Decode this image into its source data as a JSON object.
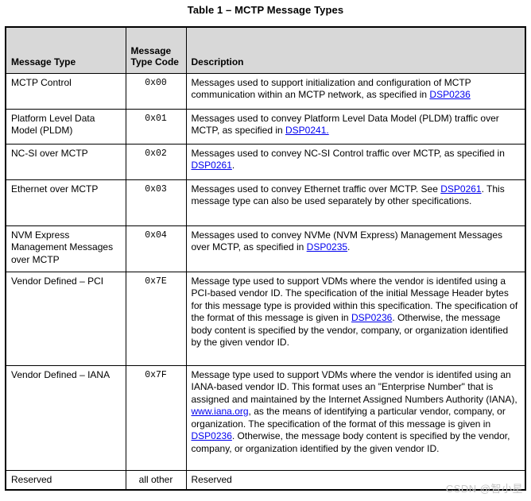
{
  "title": "Table 1 – MCTP Message Types",
  "watermark": "CSDN @智小星",
  "colors": {
    "link": "#0000ee",
    "header_bg": "#d8d8d8",
    "border": "#000000",
    "watermark": "#c8c8c8",
    "background": "#ffffff"
  },
  "table": {
    "headers": [
      "Message Type",
      "Message Type Code",
      "Description"
    ],
    "rows": [
      {
        "type": "MCTP Control",
        "code": "0x00",
        "description": [
          {
            "t": "Messages used to support initialization and configuration of MCTP communication within an MCTP network, as specified in "
          },
          {
            "t": "DSP0236",
            "link": true
          }
        ]
      },
      {
        "type": "Platform Level Data Model (PLDM)",
        "code": "0x01",
        "description": [
          {
            "t": "Messages used to convey Platform Level Data Model (PLDM) traffic over MCTP, as specified in "
          },
          {
            "t": "DSP0241.",
            "link": true
          }
        ]
      },
      {
        "type": "NC-SI over MCTP",
        "code": "0x02",
        "description": [
          {
            "t": "Messages used to convey NC-SI Control traffic over MCTP, as specified in "
          },
          {
            "t": "DSP0261",
            "link": true
          },
          {
            "t": "."
          }
        ]
      },
      {
        "type": "Ethernet over MCTP",
        "code": "0x03",
        "description": [
          {
            "t": "Messages used to convey Ethernet traffic over MCTP. See "
          },
          {
            "t": "DSP0261",
            "link": true
          },
          {
            "t": ". This message type can also be used separately by other specifications."
          }
        ]
      },
      {
        "type": "NVM Express Management Messages over MCTP",
        "code": "0x04",
        "description": [
          {
            "t": "Messages used to convey NVMe (NVM Express) Management Messages over MCTP, as specified in "
          },
          {
            "t": "DSP0235",
            "link": true
          },
          {
            "t": "."
          }
        ]
      },
      {
        "type": "Vendor Defined – PCI",
        "code": "0x7E",
        "description": [
          {
            "t": "Message type used to support VDMs where the vendor is identifed using a PCI-based vendor ID. The specification of the initial Message Header bytes for this message type is provided within this specification. The specification of the format of this message is given in "
          },
          {
            "t": "DSP0236",
            "link": true
          },
          {
            "t": ". Otherwise, the message body content is specified by the vendor, company, or organization identified by the given vendor ID."
          }
        ]
      },
      {
        "type": "Vendor Defined – IANA",
        "code": "0x7F",
        "description": [
          {
            "t": "Message type used to support VDMs where the vendor is identifed using an IANA-based vendor ID. This format uses an \"Enterprise Number\" that is assigned and maintained by the Internet Assigned Numbers Authority (IANA), "
          },
          {
            "t": "www.iana.org",
            "link": true
          },
          {
            "t": ", as the means of identifying a particular vendor, company, or organization. The specification of the format of this message is given in "
          },
          {
            "t": "DSP0236",
            "link": true
          },
          {
            "t": ". Otherwise, the message body content is specified by the vendor, company, or organization identified by the given vendor ID."
          }
        ]
      },
      {
        "type": "Reserved",
        "code": "all other",
        "description": [
          {
            "t": "Reserved"
          }
        ]
      }
    ]
  }
}
